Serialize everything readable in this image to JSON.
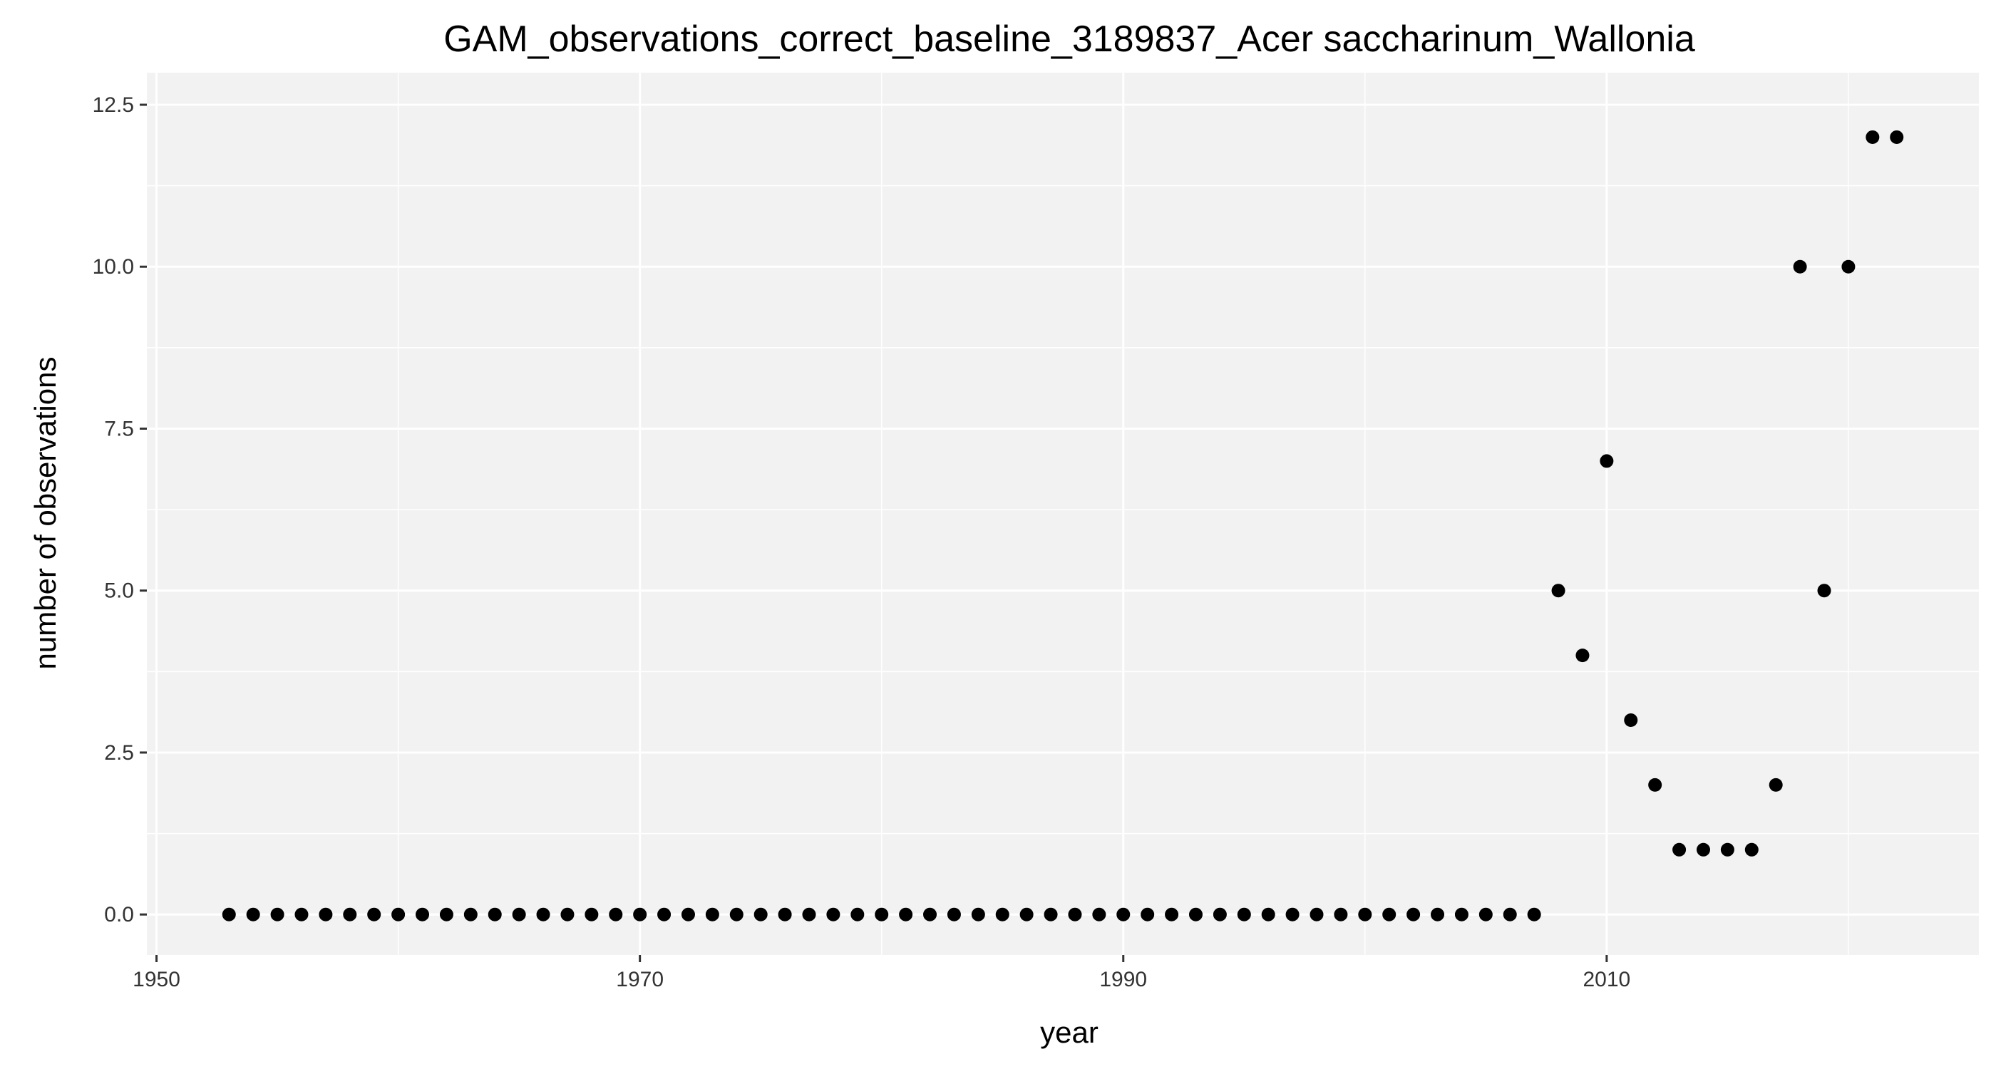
{
  "chart_data": {
    "type": "scatter",
    "title": "GAM_observations_correct_baseline_3189837_Acer saccharinum_Wallonia",
    "xlabel": "year",
    "ylabel": "number of observations",
    "xlim": [
      1949.6,
      2025.4
    ],
    "ylim": [
      -0.625,
      12.995
    ],
    "x_ticks": [
      1950,
      1970,
      1990,
      2010
    ],
    "y_ticks": [
      0.0,
      2.5,
      5.0,
      7.5,
      10.0,
      12.5
    ],
    "x_tick_labels": [
      "1950",
      "1970",
      "1990",
      "2010"
    ],
    "y_tick_labels": [
      "0.0",
      "2.5",
      "5.0",
      "7.5",
      "10.0",
      "12.5"
    ],
    "grid": true,
    "panel_background": "#f2f2f2",
    "grid_color": "#ffffff",
    "point_color": "#000000",
    "x": [
      1953,
      1954,
      1955,
      1956,
      1957,
      1958,
      1959,
      1960,
      1961,
      1962,
      1963,
      1964,
      1965,
      1966,
      1967,
      1968,
      1969,
      1970,
      1971,
      1972,
      1973,
      1974,
      1975,
      1976,
      1977,
      1978,
      1979,
      1980,
      1981,
      1982,
      1983,
      1984,
      1985,
      1986,
      1987,
      1988,
      1989,
      1990,
      1991,
      1992,
      1993,
      1994,
      1995,
      1996,
      1997,
      1998,
      1999,
      2000,
      2001,
      2002,
      2003,
      2004,
      2005,
      2006,
      2007,
      2008,
      2009,
      2010,
      2011,
      2012,
      2013,
      2014,
      2015,
      2016,
      2017,
      2018,
      2019,
      2020,
      2021,
      2022
    ],
    "y": [
      0,
      0,
      0,
      0,
      0,
      0,
      0,
      0,
      0,
      0,
      0,
      0,
      0,
      0,
      0,
      0,
      0,
      0,
      0,
      0,
      0,
      0,
      0,
      0,
      0,
      0,
      0,
      0,
      0,
      0,
      0,
      0,
      0,
      0,
      0,
      0,
      0,
      0,
      0,
      0,
      0,
      0,
      0,
      0,
      0,
      0,
      0,
      0,
      0,
      0,
      0,
      0,
      0,
      0,
      0,
      5,
      4,
      7,
      3,
      2,
      1,
      1,
      1,
      1,
      2,
      10,
      5,
      10,
      12,
      12
    ]
  }
}
